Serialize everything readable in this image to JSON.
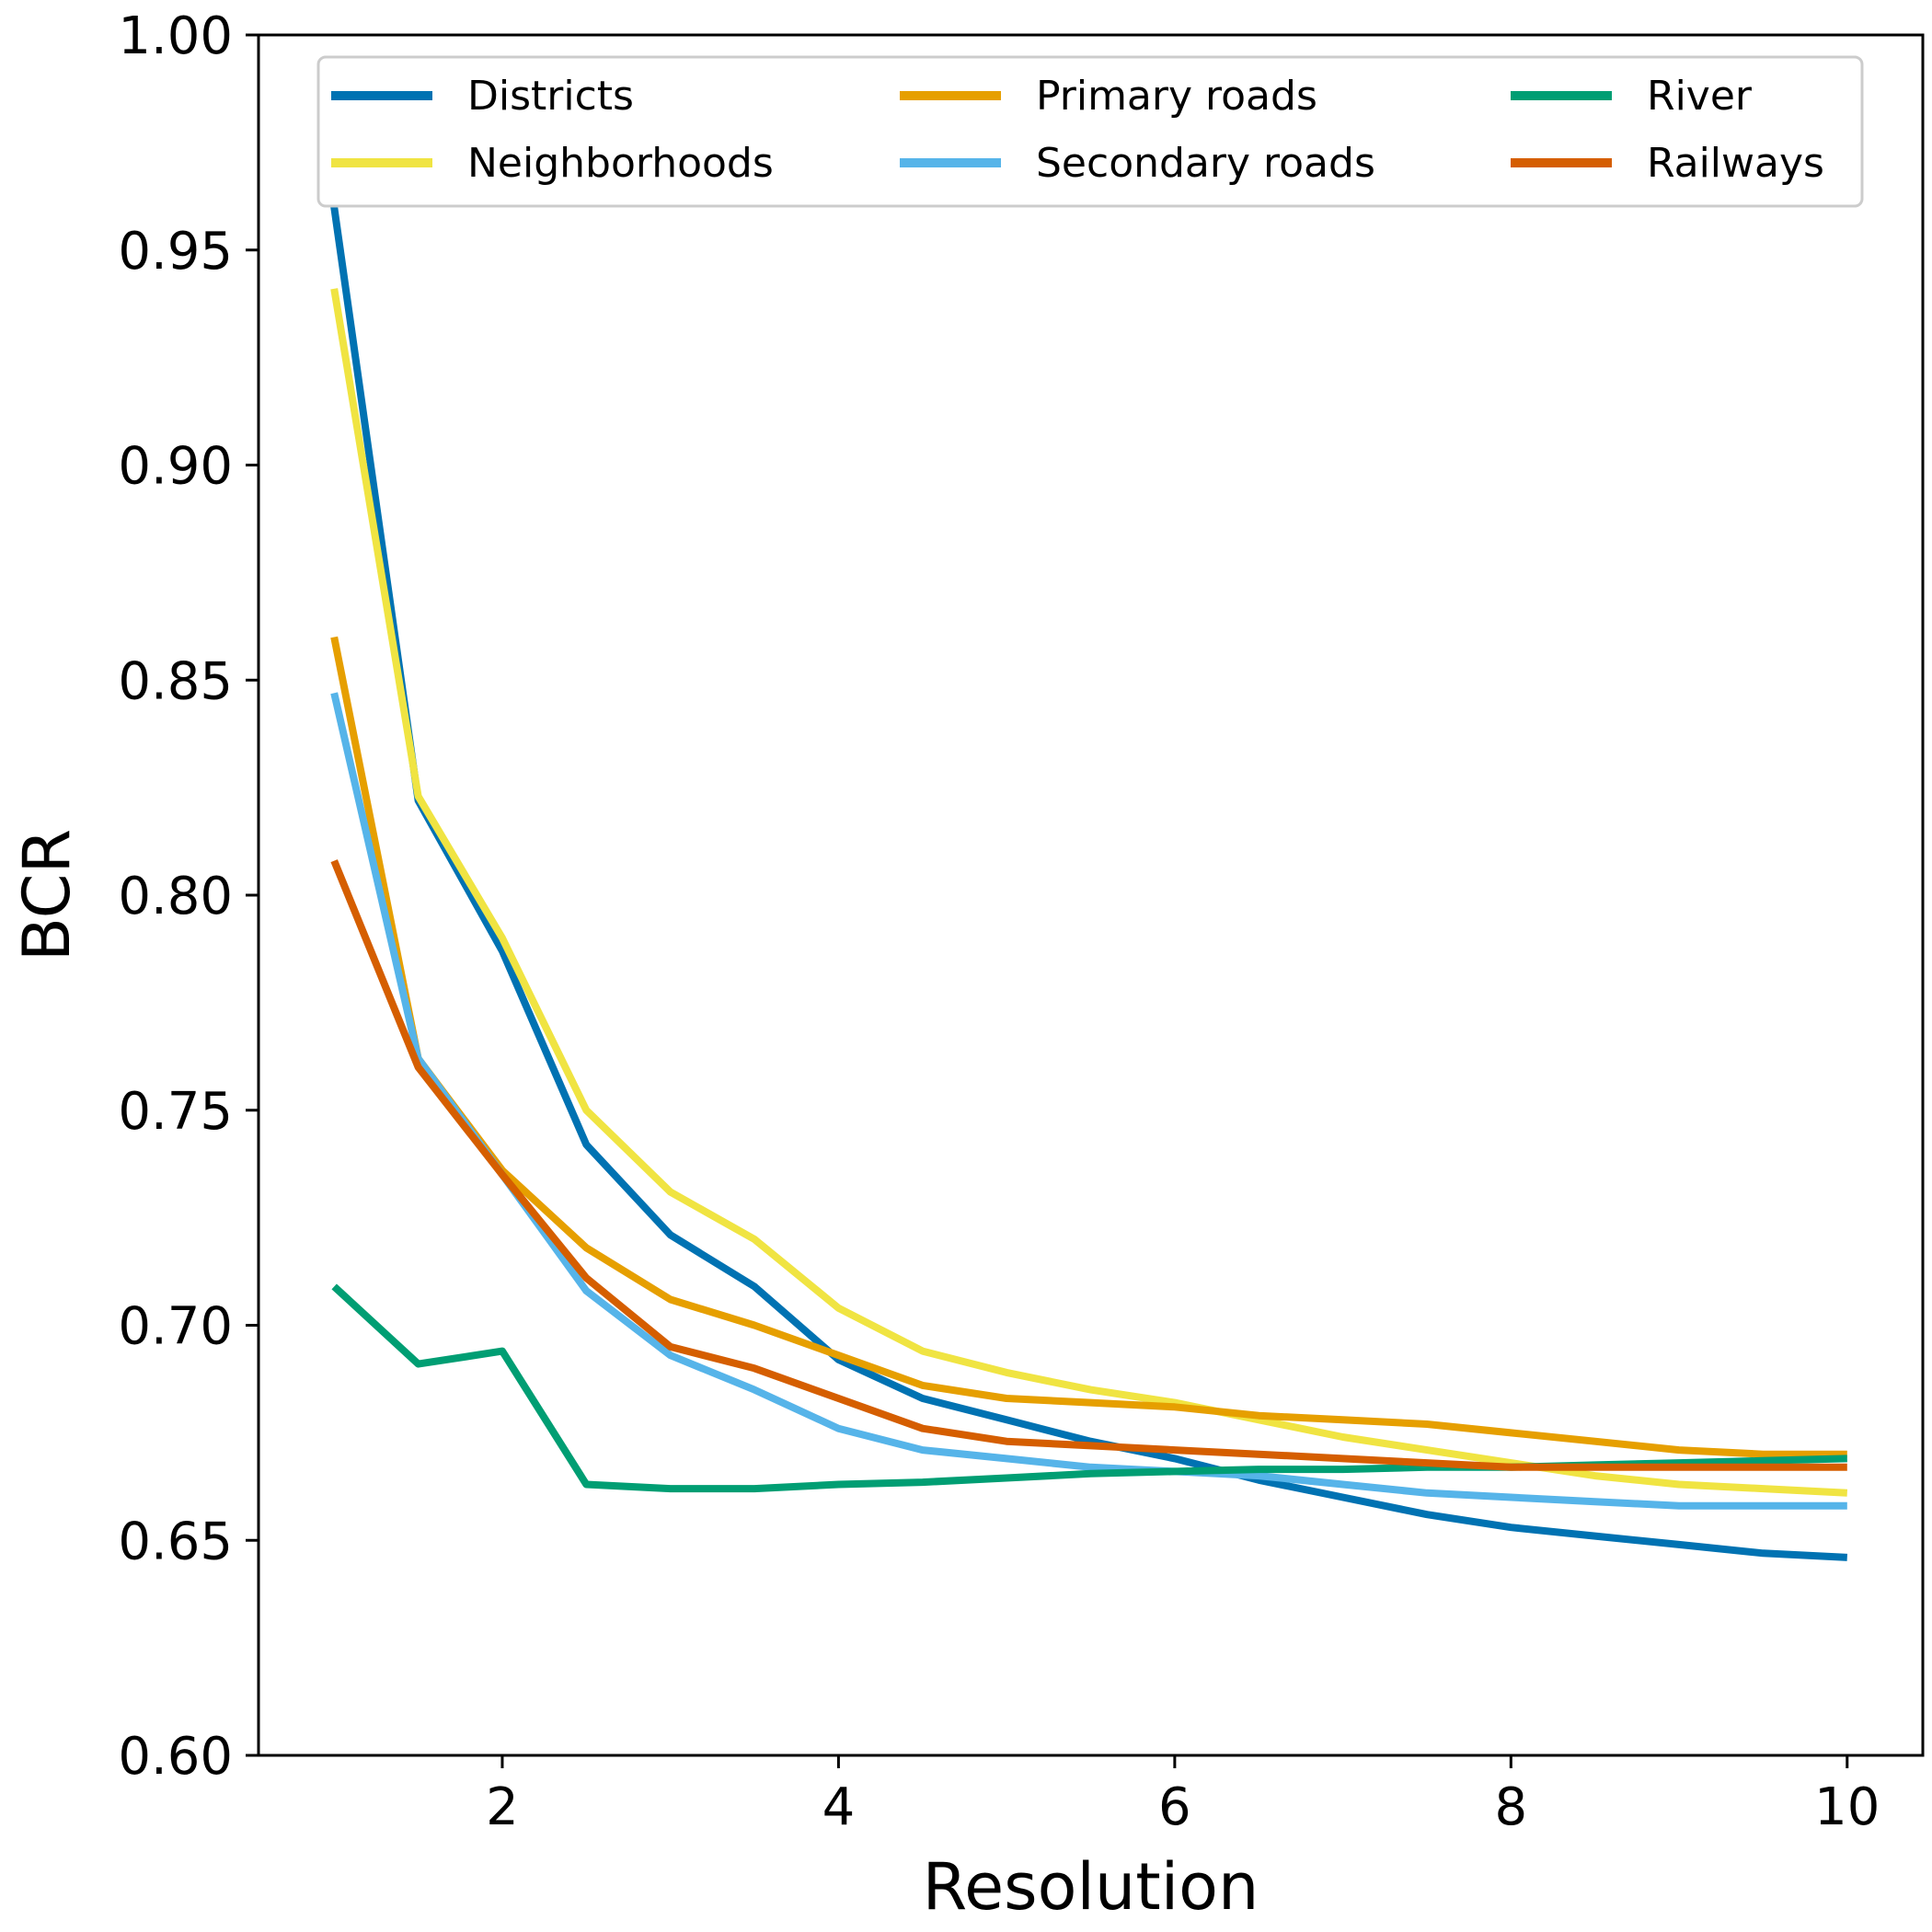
{
  "chart_data": {
    "type": "line",
    "title": "",
    "xlabel": "Resolution",
    "ylabel": "BCR",
    "xlim": [
      0.55,
      10.45
    ],
    "ylim": [
      0.6,
      1.0
    ],
    "xticks": [
      2,
      4,
      6,
      8,
      10
    ],
    "xtick_labels": [
      "2",
      "4",
      "6",
      "8",
      "10"
    ],
    "yticks": [
      0.6,
      0.65,
      0.7,
      0.75,
      0.8,
      0.85,
      0.9,
      0.95,
      1.0
    ],
    "ytick_labels": [
      "0.60",
      "0.65",
      "0.70",
      "0.75",
      "0.80",
      "0.85",
      "0.90",
      "0.95",
      "1.00"
    ],
    "grid": false,
    "legend_position": "top",
    "x": [
      1,
      1.5,
      2,
      2.5,
      3,
      3.5,
      4,
      4.5,
      5,
      5.5,
      6,
      6.5,
      7,
      7.5,
      8,
      8.5,
      9,
      9.5,
      10
    ],
    "series": [
      {
        "name": "Districts",
        "color": "#0072b2",
        "values": [
          0.96,
          0.822,
          0.787,
          0.742,
          0.721,
          0.709,
          0.692,
          0.683,
          0.678,
          0.673,
          0.669,
          0.664,
          0.66,
          0.656,
          0.653,
          0.651,
          0.649,
          0.647,
          0.646
        ]
      },
      {
        "name": "Neighborhoods",
        "color": "#f0e442",
        "values": [
          0.941,
          0.823,
          0.79,
          0.75,
          0.731,
          0.72,
          0.704,
          0.694,
          0.689,
          0.685,
          0.682,
          0.678,
          0.674,
          0.671,
          0.668,
          0.665,
          0.663,
          0.662,
          0.661
        ]
      },
      {
        "name": "Primary roads",
        "color": "#e69f00",
        "values": [
          0.86,
          0.762,
          0.736,
          0.718,
          0.706,
          0.7,
          0.693,
          0.686,
          0.683,
          0.682,
          0.681,
          0.679,
          0.678,
          0.677,
          0.675,
          0.673,
          0.671,
          0.67,
          0.67
        ]
      },
      {
        "name": "Secondary roads",
        "color": "#56b4e9",
        "values": [
          0.847,
          0.762,
          0.735,
          0.708,
          0.693,
          0.685,
          0.676,
          0.671,
          0.669,
          0.667,
          0.666,
          0.665,
          0.663,
          0.661,
          0.66,
          0.659,
          0.658,
          0.658,
          0.658
        ]
      },
      {
        "name": "River",
        "color": "#009e73",
        "values": [
          0.709,
          0.691,
          0.694,
          0.663,
          0.662,
          0.662,
          0.663,
          0.6635,
          0.6645,
          0.6655,
          0.666,
          0.6665,
          0.6665,
          0.667,
          0.667,
          0.6675,
          0.668,
          0.6685,
          0.669
        ]
      },
      {
        "name": "Railways",
        "color": "#d55e00",
        "values": [
          0.808,
          0.76,
          0.735,
          0.711,
          0.695,
          0.69,
          0.683,
          0.676,
          0.673,
          0.672,
          0.671,
          0.67,
          0.669,
          0.668,
          0.667,
          0.667,
          0.667,
          0.667,
          0.667
        ]
      }
    ]
  }
}
